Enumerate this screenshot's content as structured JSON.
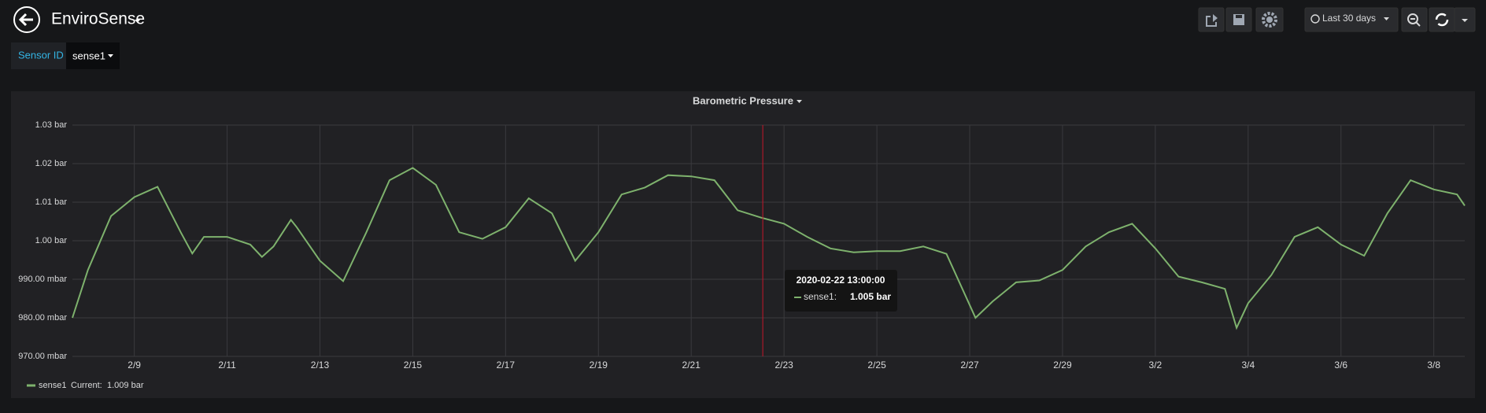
{
  "header": {
    "title": "EnviroSense",
    "time_range": "Last 30 days"
  },
  "variables": {
    "label": "Sensor ID",
    "value": "sense1"
  },
  "chart_data": {
    "type": "line",
    "title": "Barometric Pressure",
    "x": [
      "2020-02-07T16:00",
      "2020-02-08T00:00",
      "2020-02-08T12:00",
      "2020-02-09T00:00",
      "2020-02-09T12:00",
      "2020-02-10T00:00",
      "2020-02-10T06:00",
      "2020-02-10T12:00",
      "2020-02-11T00:00",
      "2020-02-11T12:00",
      "2020-02-11T18:00",
      "2020-02-12T00:00",
      "2020-02-12T09:00",
      "2020-02-12T12:00",
      "2020-02-13T00:00",
      "2020-02-13T12:00",
      "2020-02-14T00:00",
      "2020-02-14T12:00",
      "2020-02-15T00:00",
      "2020-02-15T12:00",
      "2020-02-16T00:00",
      "2020-02-16T12:00",
      "2020-02-17T00:00",
      "2020-02-17T12:00",
      "2020-02-18T00:00",
      "2020-02-18T12:00",
      "2020-02-19T00:00",
      "2020-02-19T12:00",
      "2020-02-20T00:00",
      "2020-02-20T12:00",
      "2020-02-21T00:00",
      "2020-02-21T12:00",
      "2020-02-22T00:00",
      "2020-02-22T12:00",
      "2020-02-23T00:00",
      "2020-02-23T12:00",
      "2020-02-24T00:00",
      "2020-02-24T12:00",
      "2020-02-25T00:00",
      "2020-02-25T12:00",
      "2020-02-26T00:00",
      "2020-02-26T12:00",
      "2020-02-27T03:00",
      "2020-02-27T12:00",
      "2020-02-28T00:00",
      "2020-02-28T12:00",
      "2020-02-29T00:00",
      "2020-02-29T12:00",
      "2020-03-01T00:00",
      "2020-03-01T12:00",
      "2020-03-02T00:00",
      "2020-03-02T12:00",
      "2020-03-03T00:00",
      "2020-03-03T12:00",
      "2020-03-03T18:00",
      "2020-03-04T00:00",
      "2020-03-04T12:00",
      "2020-03-05T00:00",
      "2020-03-05T12:00",
      "2020-03-06T00:00",
      "2020-03-06T12:00",
      "2020-03-07T00:00",
      "2020-03-07T12:00",
      "2020-03-08T00:00",
      "2020-03-08T12:00",
      "2020-03-08T16:00"
    ],
    "series": [
      {
        "name": "sense1",
        "color": "#7eb26d",
        "values": [
          0.98,
          0.9924,
          1.0064,
          1.0113,
          1.014,
          1.0022,
          0.9967,
          1.001,
          1.001,
          0.999,
          0.9958,
          0.9985,
          1.0054,
          1.0035,
          0.9948,
          0.9895,
          1.0022,
          1.0157,
          1.0189,
          1.0145,
          1.0022,
          1.0005,
          1.0035,
          1.011,
          1.0071,
          0.9948,
          1.0022,
          1.012,
          1.0138,
          1.017,
          1.0167,
          1.0157,
          1.0079,
          1.006,
          1.0044,
          1.001,
          0.998,
          0.997,
          0.9973,
          0.9973,
          0.9985,
          0.9966,
          0.98,
          0.9843,
          0.9892,
          0.9897,
          0.9924,
          0.9985,
          1.0022,
          1.0044,
          0.998,
          0.9907,
          0.9892,
          0.9875,
          0.9774,
          0.9838,
          0.9911,
          1.001,
          1.0035,
          0.999,
          0.9961,
          1.0071,
          1.0157,
          1.0133,
          1.012,
          1.0091
        ]
      }
    ],
    "xlim": [
      "2020-02-07T16:00",
      "2020-03-08T16:00"
    ],
    "xticks": [
      {
        "value": "2020-02-09",
        "label": "2/9"
      },
      {
        "value": "2020-02-11",
        "label": "2/11"
      },
      {
        "value": "2020-02-13",
        "label": "2/13"
      },
      {
        "value": "2020-02-15",
        "label": "2/15"
      },
      {
        "value": "2020-02-17",
        "label": "2/17"
      },
      {
        "value": "2020-02-19",
        "label": "2/19"
      },
      {
        "value": "2020-02-21",
        "label": "2/21"
      },
      {
        "value": "2020-02-23",
        "label": "2/23"
      },
      {
        "value": "2020-02-25",
        "label": "2/25"
      },
      {
        "value": "2020-02-27",
        "label": "2/27"
      },
      {
        "value": "2020-02-29",
        "label": "2/29"
      },
      {
        "value": "2020-03-02",
        "label": "3/2"
      },
      {
        "value": "2020-03-04",
        "label": "3/4"
      },
      {
        "value": "2020-03-06",
        "label": "3/6"
      },
      {
        "value": "2020-03-08",
        "label": "3/8"
      }
    ],
    "ylim": [
      0.97,
      1.03
    ],
    "yticks": [
      {
        "value": 0.97,
        "label": "970.00 mbar"
      },
      {
        "value": 0.98,
        "label": "980.00 mbar"
      },
      {
        "value": 0.99,
        "label": "990.00 mbar"
      },
      {
        "value": 1.0,
        "label": "1.00 bar"
      },
      {
        "value": 1.01,
        "label": "1.01 bar"
      },
      {
        "value": 1.02,
        "label": "1.02 bar"
      },
      {
        "value": 1.03,
        "label": "1.03 bar"
      }
    ],
    "grid": true,
    "tooltip": {
      "time": "2020-02-22 13:00:00",
      "series": "sense1:",
      "value": 1.005,
      "value_label": "1.005 bar"
    },
    "legend_current": {
      "label": "Current:",
      "value": 1.009,
      "value_label": "1.009 bar"
    }
  }
}
